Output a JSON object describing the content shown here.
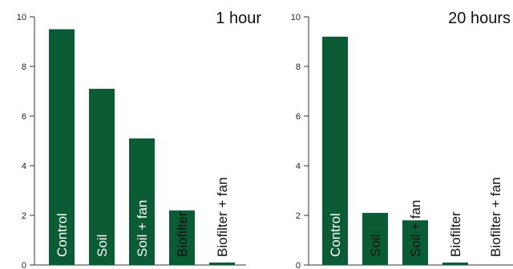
{
  "bar_color": "#0b5c34",
  "chart_data": [
    {
      "type": "bar",
      "title": "1 hour",
      "categories": [
        "Control",
        "Soil",
        "Soil + fan",
        "Biofilter",
        "Biofilter + fan"
      ],
      "values": [
        9.5,
        7.1,
        5.1,
        2.2,
        0.1
      ],
      "ylim": [
        0,
        10
      ],
      "yticks": [
        0,
        2,
        4,
        6,
        8,
        10
      ],
      "grid": false
    },
    {
      "type": "bar",
      "title": "20 hours",
      "categories": [
        "Control",
        "Soil",
        "Soil + fan",
        "Biofilter",
        "Biofilter + fan"
      ],
      "values": [
        9.2,
        2.1,
        1.8,
        0.1,
        0.0
      ],
      "ylim": [
        0,
        10
      ],
      "yticks": [
        0,
        2,
        4,
        6,
        8,
        10
      ],
      "grid": false
    }
  ]
}
